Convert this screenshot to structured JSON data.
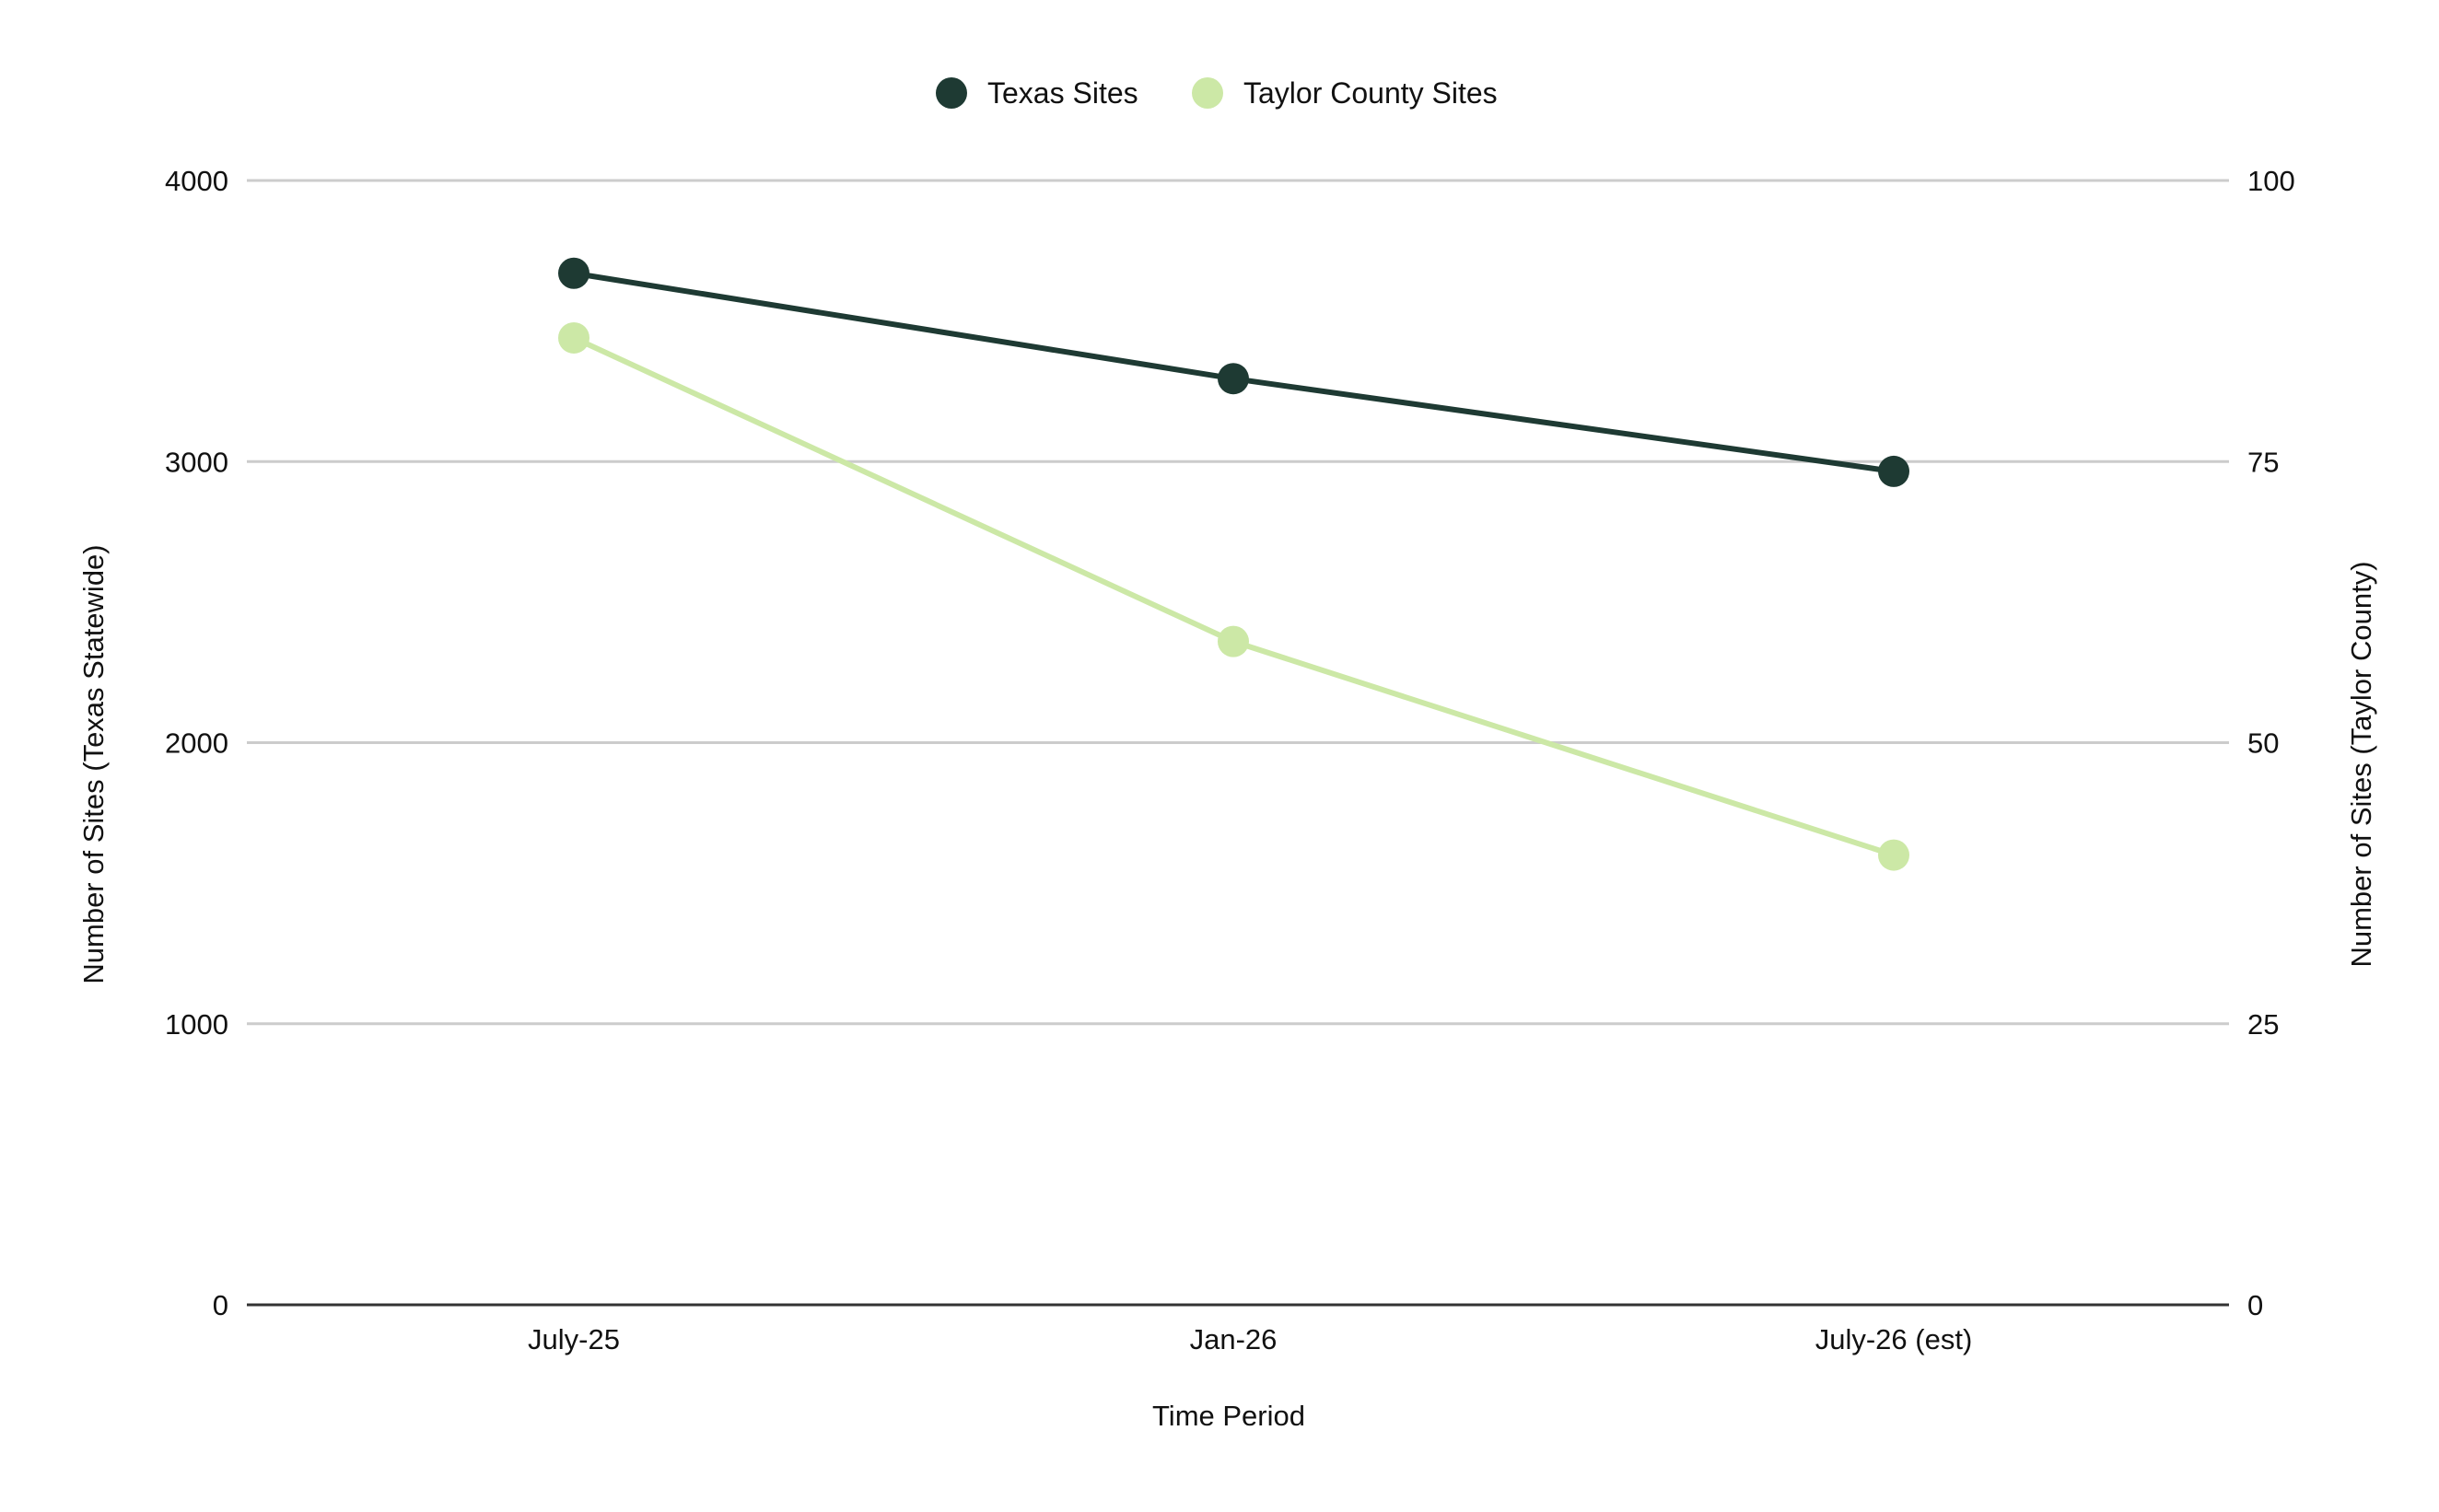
{
  "chart_data": {
    "type": "line",
    "title": "",
    "xlabel": "Time Period",
    "ylabel_left": "Number of Sites (Texas Statewide)",
    "ylabel_right": "Number of Sites (Taylor County)",
    "categories": [
      "July-25",
      "Jan-26",
      "July-26 (est)"
    ],
    "y_left_range": [
      0,
      4000
    ],
    "y_left_ticks": [
      0,
      1000,
      2000,
      3000,
      4000
    ],
    "y_right_range": [
      0,
      100
    ],
    "y_right_ticks": [
      0,
      25,
      50,
      75,
      100
    ],
    "grid": true,
    "legend_position": "top",
    "series": [
      {
        "name": "Texas Sites",
        "axis": "left",
        "color": "#1e3a33",
        "values": [
          3670,
          3295,
          2965
        ]
      },
      {
        "name": "Taylor County Sites",
        "axis": "right",
        "color": "#cce8a6",
        "values": [
          86,
          59,
          40
        ]
      }
    ],
    "colors": {
      "gridline": "#cccccc",
      "baseline": "#333333"
    }
  }
}
